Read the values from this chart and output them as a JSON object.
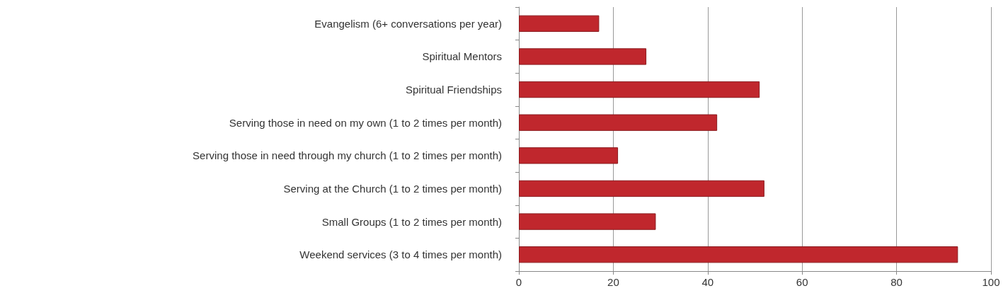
{
  "chart_data": {
    "type": "bar",
    "orientation": "horizontal",
    "categories": [
      "Evangelism (6+ conversations per year)",
      "Spiritual Mentors",
      "Spiritual Friendships",
      "Serving those in need on my own (1 to 2 times per month)",
      "Serving those in need through my church (1 to 2 times per month)",
      "Serving at the Church (1 to 2 times per month)",
      "Small Groups (1 to 2 times per month)",
      "Weekend services (3 to 4 times per month)"
    ],
    "values": [
      17,
      27,
      51,
      42,
      21,
      52,
      29,
      93
    ],
    "color": "#c0272d",
    "xlim": [
      0,
      100
    ],
    "xticks": [
      0,
      20,
      40,
      60,
      80,
      100
    ],
    "grid": "x"
  }
}
